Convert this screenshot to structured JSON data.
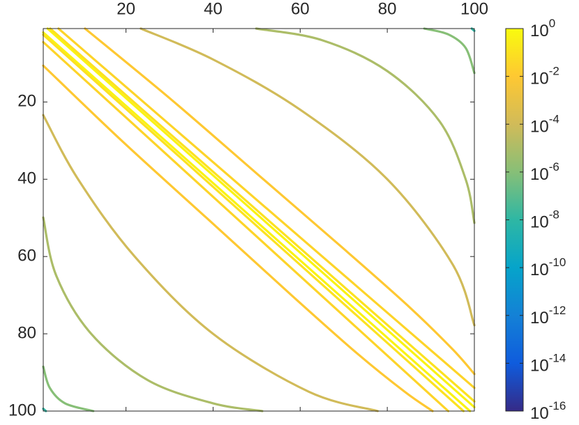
{
  "chart_data": {
    "type": "contour",
    "xlim": [
      1,
      100
    ],
    "ylim": [
      1,
      100
    ],
    "y_reversed": true,
    "x_axis_location": "top",
    "xticks": [
      20,
      40,
      60,
      80,
      100
    ],
    "yticks": [
      20,
      40,
      60,
      80,
      100
    ],
    "clim": [
      1e-16,
      1
    ],
    "color_scale": "log",
    "colormap": [
      "#352a87",
      "#0f5cdd",
      "#1481d6",
      "#06a4ca",
      "#2eb7a4",
      "#87bf77",
      "#d1bb59",
      "#fec832",
      "#f9fb0e"
    ],
    "cticks": [
      {
        "value": 1,
        "label": "10",
        "exponent": "0"
      },
      {
        "value": 0.01,
        "label": "10",
        "exponent": "-2"
      },
      {
        "value": 0.0001,
        "label": "10",
        "exponent": "-4"
      },
      {
        "value": 1e-06,
        "label": "10",
        "exponent": "-6"
      },
      {
        "value": 1e-08,
        "label": "10",
        "exponent": "-8"
      },
      {
        "value": 1e-10,
        "label": "10",
        "exponent": "-10"
      },
      {
        "value": 1e-12,
        "label": "10",
        "exponent": "-12"
      },
      {
        "value": 1e-14,
        "label": "10",
        "exponent": "-14"
      },
      {
        "value": 1e-16,
        "label": "10",
        "exponent": "-16"
      }
    ],
    "contours": [
      {
        "level": 0.5,
        "x": [
          2,
          100
        ],
        "y": [
          1,
          99
        ]
      },
      {
        "level": 0.1,
        "x": [
          2.6,
          100
        ],
        "y": [
          1,
          97.5
        ]
      },
      {
        "level": 0.03,
        "x": [
          4.5,
          100
        ],
        "y": [
          1,
          94
        ]
      },
      {
        "level": 0.01,
        "x": [
          10.6,
          30,
          50,
          70,
          85,
          95,
          100
        ],
        "y": [
          1,
          19,
          38.5,
          58,
          73,
          84,
          90.4
        ]
      },
      {
        "level": 0.0001,
        "x": [
          23.4,
          40,
          60,
          80,
          95,
          100
        ],
        "y": [
          1,
          9,
          22,
          40,
          62,
          77.8
        ]
      },
      {
        "level": 1e-05,
        "x": [
          49.9,
          65,
          80,
          92,
          98,
          100
        ],
        "y": [
          1,
          4,
          12,
          25,
          40,
          51.3
        ]
      },
      {
        "level": 1e-06,
        "x": [
          88.5,
          94,
          98,
          100
        ],
        "y": [
          1,
          2.5,
          6,
          12.5
        ]
      },
      {
        "level": 1e-08,
        "x": [
          99.4,
          100
        ],
        "y": [
          1,
          1.6
        ]
      },
      {
        "level": 0.5,
        "x": [
          1,
          99
        ],
        "y": [
          2,
          100
        ]
      },
      {
        "level": 0.1,
        "x": [
          1,
          97.5
        ],
        "y": [
          2.6,
          100
        ]
      },
      {
        "level": 0.03,
        "x": [
          1,
          94
        ],
        "y": [
          4.5,
          100
        ]
      },
      {
        "level": 0.01,
        "x": [
          1,
          19,
          38.5,
          58,
          73,
          84,
          90.4
        ],
        "y": [
          10.6,
          30,
          50,
          70,
          85,
          95,
          100
        ]
      },
      {
        "level": 0.0001,
        "x": [
          1,
          9,
          22,
          40,
          62,
          77.8
        ],
        "y": [
          23.4,
          40,
          60,
          80,
          95,
          100
        ]
      },
      {
        "level": 1e-05,
        "x": [
          1,
          4,
          12,
          25,
          40,
          51.3
        ],
        "y": [
          49.9,
          65,
          80,
          92,
          98,
          100
        ]
      },
      {
        "level": 1e-06,
        "x": [
          1,
          2.5,
          6,
          12.5
        ],
        "y": [
          88.5,
          94,
          98,
          100
        ]
      },
      {
        "level": 1e-08,
        "x": [
          1,
          1.6
        ],
        "y": [
          99.4,
          100
        ]
      }
    ]
  }
}
